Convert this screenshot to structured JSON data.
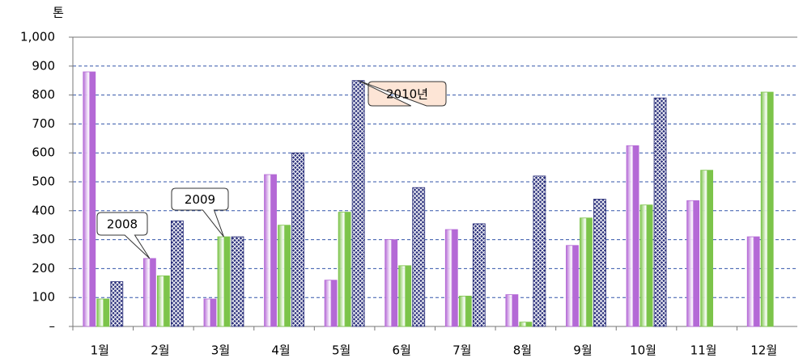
{
  "chart_data": {
    "type": "bar",
    "y_label": "톤",
    "categories": [
      "1월",
      "2월",
      "3월",
      "4월",
      "5월",
      "6월",
      "7월",
      "8월",
      "9월",
      "10월",
      "11월",
      "12월"
    ],
    "series": [
      {
        "name": "2008",
        "color": "#b469d6",
        "values": [
          880,
          235,
          95,
          525,
          160,
          300,
          335,
          110,
          280,
          625,
          435,
          310
        ]
      },
      {
        "name": "2009",
        "color": "#7cc44a",
        "values": [
          95,
          175,
          310,
          350,
          395,
          210,
          105,
          15,
          375,
          420,
          540,
          810
        ]
      },
      {
        "name": "2010년",
        "color": "#2a2f7a",
        "pattern": "crosshatch",
        "values": [
          155,
          365,
          310,
          600,
          850,
          480,
          355,
          520,
          440,
          790,
          null,
          null
        ]
      }
    ],
    "ylim": [
      0,
      1000
    ],
    "yticks": [
      {
        "value": 0,
        "label": "–"
      },
      100,
      200,
      300,
      400,
      500,
      600,
      700,
      800,
      900,
      {
        "value": 1000,
        "label": "1,000"
      }
    ],
    "grid": true
  }
}
